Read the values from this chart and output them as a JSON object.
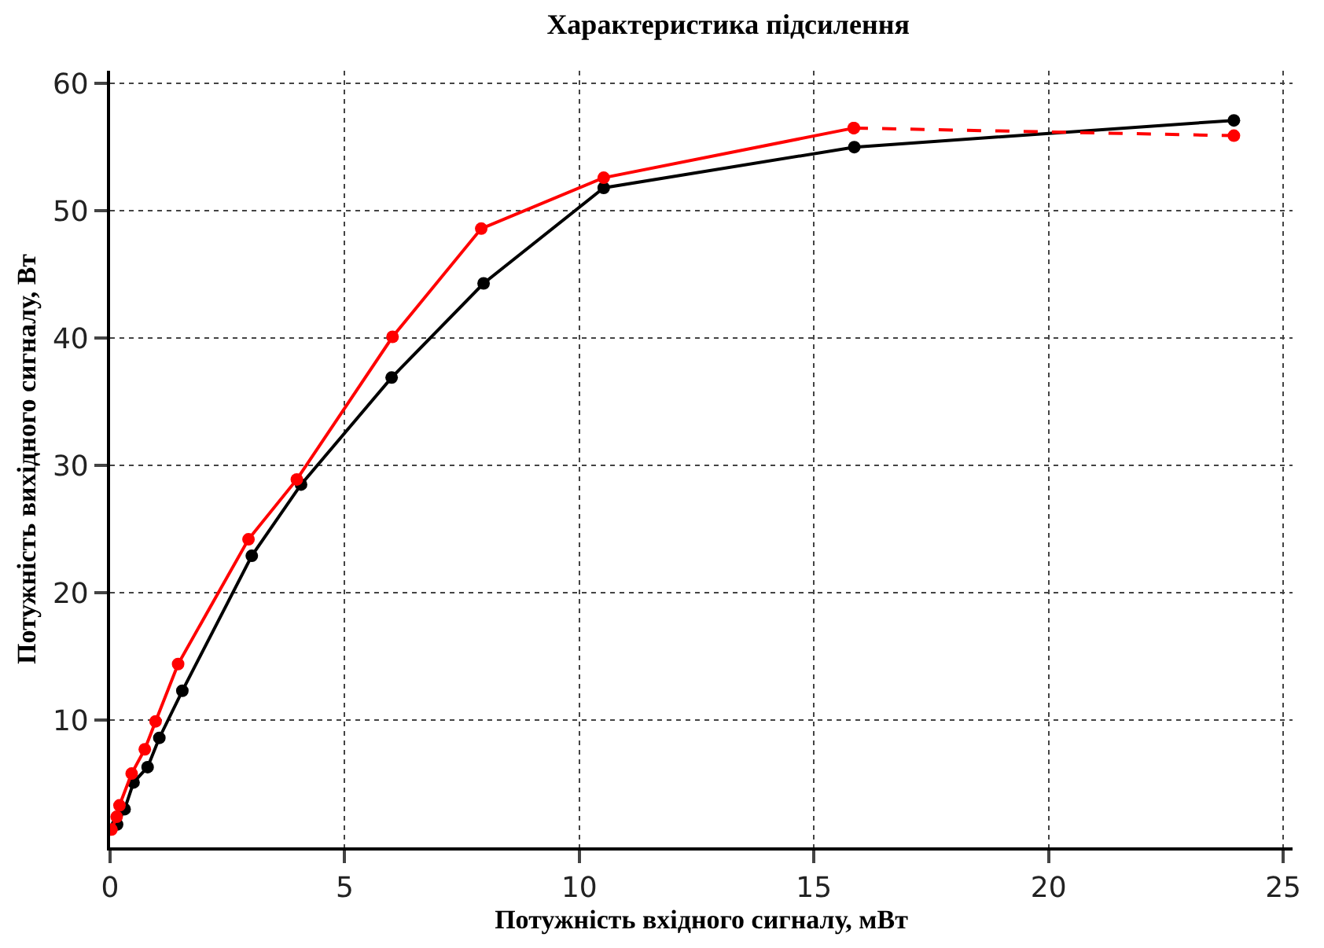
{
  "chart_data": {
    "type": "line",
    "title": "Характеристика підсилення",
    "xlabel": "Потужність вхідного сигналу, мВт",
    "ylabel": "Потужність вихідного сигналу, Вт",
    "xlim": [
      0,
      25.2
    ],
    "ylim": [
      0,
      61
    ],
    "xticks": [
      0,
      5,
      10,
      15,
      20,
      25
    ],
    "yticks": [
      10,
      20,
      30,
      40,
      50,
      60
    ],
    "grid": true,
    "marker": "circle",
    "series": [
      {
        "color": "#000000",
        "line_style": "solid",
        "x": [
          0.15,
          0.31,
          0.5,
          0.8,
          1.05,
          1.54,
          3.02,
          4.07,
          6.0,
          7.96,
          10.52,
          15.86,
          23.95
        ],
        "values": [
          1.8,
          3.0,
          5.1,
          6.3,
          8.6,
          12.3,
          22.9,
          28.5,
          36.9,
          44.3,
          51.8,
          55.0,
          57.1
        ]
      },
      {
        "color": "#ff0000",
        "line_style": "solid",
        "x": [
          0.03,
          0.14,
          0.2,
          0.46,
          0.74,
          0.97,
          1.45,
          2.95,
          3.98,
          6.02,
          7.91,
          10.52,
          15.85
        ],
        "values": [
          1.4,
          2.4,
          3.3,
          5.8,
          7.7,
          9.9,
          14.4,
          24.2,
          28.9,
          40.1,
          48.6,
          52.6,
          56.5
        ]
      },
      {
        "color": "#ff0000",
        "line_style": "dashed",
        "x": [
          15.85,
          23.95
        ],
        "values": [
          56.5,
          55.9
        ]
      }
    ]
  }
}
